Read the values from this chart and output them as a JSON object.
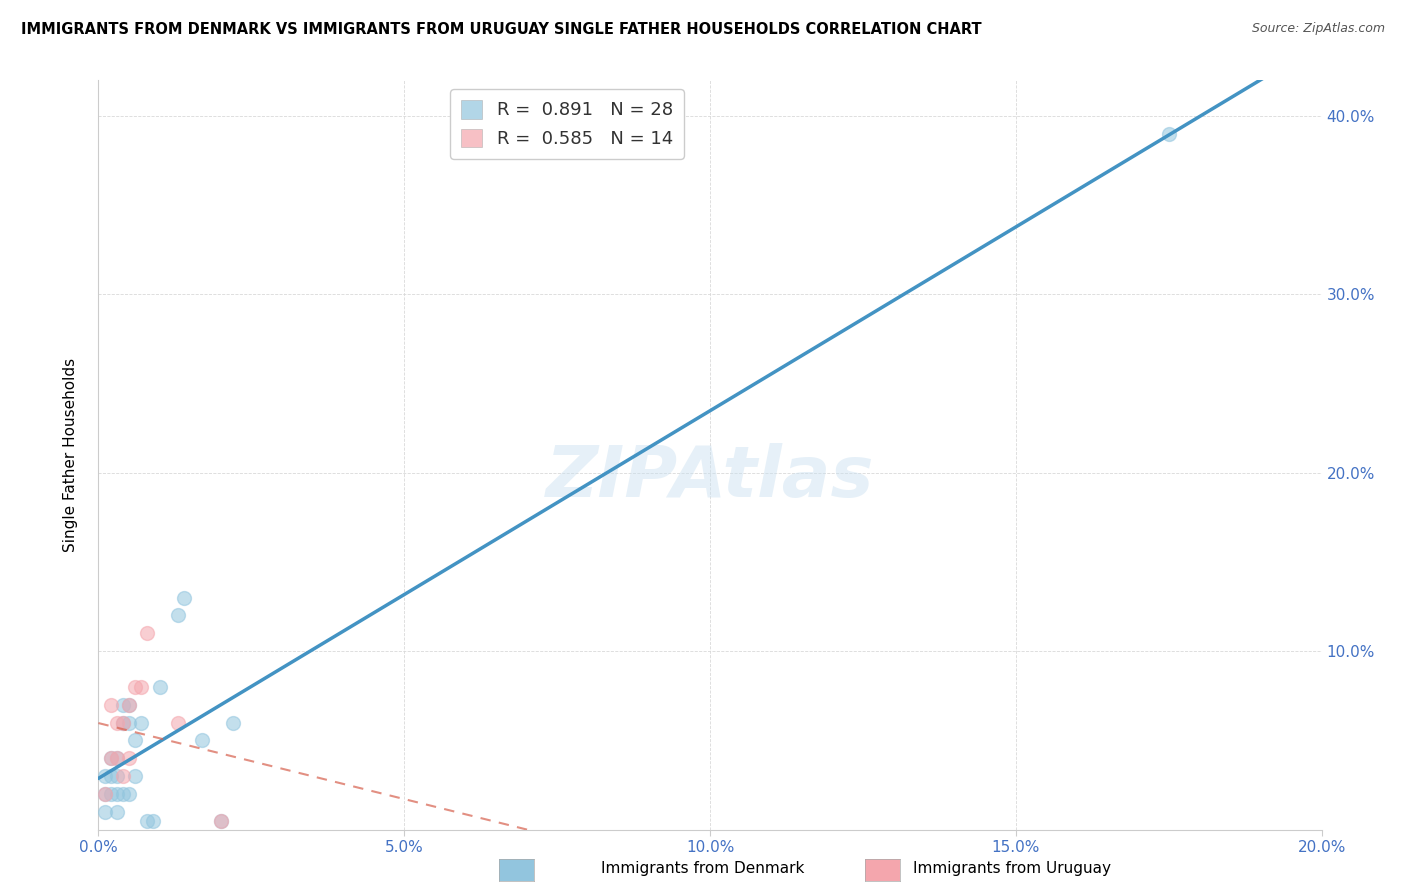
{
  "title": "IMMIGRANTS FROM DENMARK VS IMMIGRANTS FROM URUGUAY SINGLE FATHER HOUSEHOLDS CORRELATION CHART",
  "source": "Source: ZipAtlas.com",
  "ylabel": "Single Father Households",
  "xlim": [
    0.0,
    0.2
  ],
  "ylim": [
    0.0,
    0.42
  ],
  "xticks": [
    0.0,
    0.05,
    0.1,
    0.15,
    0.2
  ],
  "yticks": [
    0.0,
    0.1,
    0.2,
    0.3,
    0.4
  ],
  "ytick_labels": [
    "",
    "10.0%",
    "20.0%",
    "30.0%",
    "40.0%"
  ],
  "xtick_labels": [
    "0.0%",
    "",
    "",
    "",
    "20.0%"
  ],
  "denmark_color": "#92c5de",
  "uruguay_color": "#f4a6ad",
  "denmark_line_color": "#4393c3",
  "uruguay_line_color": "#d6604d",
  "legend_r_denmark": "R = 0.891",
  "legend_n_denmark": "N = 28",
  "legend_r_uruguay": "R = 0.585",
  "legend_n_uruguay": "N = 14",
  "denmark_x": [
    0.001,
    0.001,
    0.001,
    0.002,
    0.002,
    0.002,
    0.003,
    0.003,
    0.003,
    0.003,
    0.004,
    0.004,
    0.004,
    0.005,
    0.005,
    0.005,
    0.006,
    0.006,
    0.007,
    0.008,
    0.009,
    0.01,
    0.013,
    0.014,
    0.017,
    0.02,
    0.022,
    0.175
  ],
  "denmark_y": [
    0.01,
    0.02,
    0.03,
    0.02,
    0.03,
    0.04,
    0.01,
    0.02,
    0.03,
    0.04,
    0.02,
    0.06,
    0.07,
    0.02,
    0.06,
    0.07,
    0.03,
    0.05,
    0.06,
    0.005,
    0.005,
    0.08,
    0.12,
    0.13,
    0.05,
    0.005,
    0.06,
    0.39
  ],
  "uruguay_x": [
    0.001,
    0.002,
    0.002,
    0.003,
    0.003,
    0.004,
    0.004,
    0.005,
    0.005,
    0.006,
    0.007,
    0.008,
    0.013,
    0.02
  ],
  "uruguay_y": [
    0.02,
    0.04,
    0.07,
    0.04,
    0.06,
    0.03,
    0.06,
    0.04,
    0.07,
    0.08,
    0.08,
    0.11,
    0.06,
    0.005
  ],
  "background_color": "#ffffff",
  "grid_color": "#d9d9d9",
  "marker_size": 100,
  "watermark_text": "ZIPAtlas",
  "legend_color_r": "#4393c3",
  "legend_color_n": "#4393c3"
}
